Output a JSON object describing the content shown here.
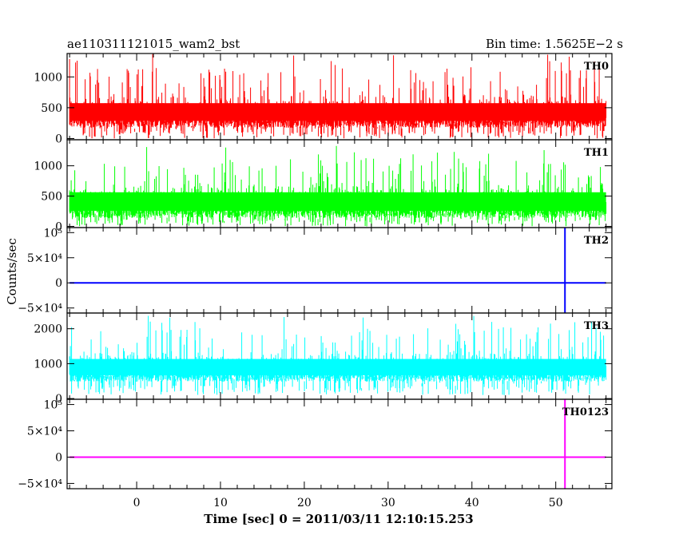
{
  "header": {
    "title": "ae110311121015_wam2_bst",
    "bin_time": "Bin time: 1.5625E−2 s"
  },
  "chart_data": {
    "type": "line",
    "title": "ae110311121015_wam2_bst",
    "xlabel": "Time [sec] 0 = 2011/03/11 12:10:15.253",
    "ylabel": "Counts/sec",
    "xlim": [
      -8.3,
      56.7
    ],
    "x_ticks": [
      "0",
      "10",
      "20",
      "30",
      "40",
      "50"
    ],
    "x_tick_values": [
      0,
      10,
      20,
      30,
      40,
      50
    ],
    "data_range": [
      -8,
      56
    ],
    "panels": [
      {
        "name": "TH0",
        "color": "#ff0000",
        "ylim": [
          -20,
          1380
        ],
        "tick_values": [
          0,
          500,
          1000
        ],
        "tick_labels": [
          "0",
          "500",
          "1000"
        ],
        "base": 430,
        "spread": 160,
        "spike_max": 1380,
        "low_min": 0
      },
      {
        "name": "TH1",
        "color": "#00ff00",
        "ylim": [
          -20,
          1430
        ],
        "tick_values": [
          0,
          500,
          1000
        ],
        "tick_labels": [
          "0",
          "500",
          "1000"
        ],
        "base": 410,
        "spread": 170,
        "spike_max": 1350,
        "low_min": 0
      },
      {
        "name": "TH2",
        "color": "#0000ff",
        "ylim": [
          -60000,
          110000
        ],
        "tick_values": [
          -50000,
          0,
          50000,
          100000
        ],
        "tick_labels": [
          "−5×10⁴",
          "0",
          "5×10⁴",
          "10⁵"
        ],
        "flat": 0,
        "spike_at": 51.1
      },
      {
        "name": "TH3",
        "color": "#00ffff",
        "ylim": [
          -20,
          2450
        ],
        "tick_values": [
          0,
          1000,
          2000
        ],
        "tick_labels": [
          "0",
          "1000",
          "2000"
        ],
        "base": 900,
        "spread": 260,
        "spike_max": 2400,
        "low_min": 100
      },
      {
        "name": "TH0123",
        "color": "#ff00ff",
        "ylim": [
          -60000,
          110000
        ],
        "tick_values": [
          -50000,
          0,
          50000,
          100000
        ],
        "tick_labels": [
          "−5×10⁴",
          "0",
          "5×10⁴",
          "10⁵"
        ],
        "flat": 0,
        "spike_at": 51.1
      }
    ],
    "grid": false,
    "legend": "none"
  }
}
